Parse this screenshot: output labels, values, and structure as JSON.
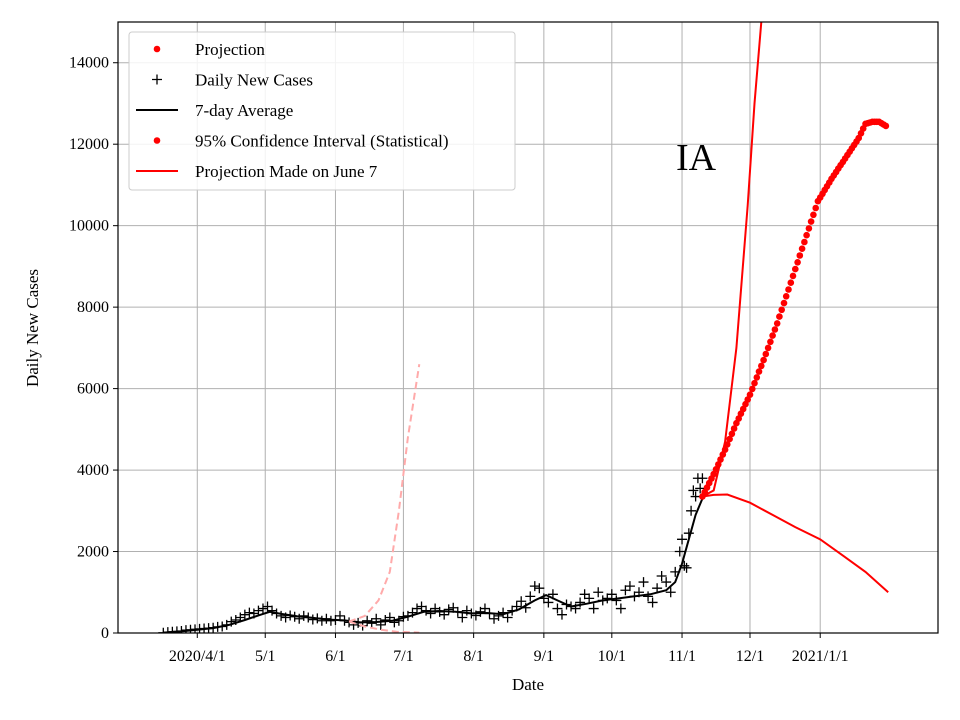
{
  "chart_data": {
    "type": "line",
    "title": "",
    "annotation": "IA",
    "xlabel": "Date",
    "ylabel": "Daily New Cases",
    "xlim": [
      "2020-02-26",
      "2021-02-22"
    ],
    "ylim": [
      0,
      15000
    ],
    "grid": true,
    "legend_position": "top-left",
    "x_ticks": [
      {
        "date": "2020-04-01",
        "label": "2020/4/1"
      },
      {
        "date": "2020-05-01",
        "label": "5/1"
      },
      {
        "date": "2020-06-01",
        "label": "6/1"
      },
      {
        "date": "2020-07-01",
        "label": "7/1"
      },
      {
        "date": "2020-08-01",
        "label": "8/1"
      },
      {
        "date": "2020-09-01",
        "label": "9/1"
      },
      {
        "date": "2020-10-01",
        "label": "10/1"
      },
      {
        "date": "2020-11-01",
        "label": "11/1"
      },
      {
        "date": "2020-12-01",
        "label": "12/1"
      },
      {
        "date": "2021-01-01",
        "label": "2021/1/1"
      }
    ],
    "y_ticks": [
      0,
      2000,
      4000,
      6000,
      8000,
      10000,
      12000,
      14000
    ],
    "colors": {
      "projection": "#ff0000",
      "cases": "#000000",
      "average": "#000000",
      "june_projection": "#ffaaaa"
    },
    "legend": [
      {
        "label": "Projection",
        "marker": "dot",
        "color": "#ff0000"
      },
      {
        "label": "Daily New Cases",
        "marker": "plus",
        "color": "#000000"
      },
      {
        "label": "7-day Average",
        "marker": "line",
        "color": "#000000"
      },
      {
        "label": "95% Confidence Interval (Statistical)",
        "marker": "dot",
        "color": "#ff0000"
      },
      {
        "label": "Projection Made on June 7",
        "marker": "line",
        "color": "#ff0000"
      }
    ],
    "series": [
      {
        "name": "Daily New Cases",
        "kind": "scatter-plus",
        "points": [
          [
            "2020-03-17",
            5
          ],
          [
            "2020-03-19",
            20
          ],
          [
            "2020-03-21",
            30
          ],
          [
            "2020-03-23",
            40
          ],
          [
            "2020-03-25",
            50
          ],
          [
            "2020-03-27",
            70
          ],
          [
            "2020-03-29",
            80
          ],
          [
            "2020-03-31",
            90
          ],
          [
            "2020-04-02",
            100
          ],
          [
            "2020-04-04",
            110
          ],
          [
            "2020-04-06",
            120
          ],
          [
            "2020-04-08",
            130
          ],
          [
            "2020-04-10",
            150
          ],
          [
            "2020-04-12",
            160
          ],
          [
            "2020-04-14",
            200
          ],
          [
            "2020-04-16",
            280
          ],
          [
            "2020-04-18",
            320
          ],
          [
            "2020-04-20",
            380
          ],
          [
            "2020-04-22",
            450
          ],
          [
            "2020-04-24",
            500
          ],
          [
            "2020-04-26",
            480
          ],
          [
            "2020-04-28",
            550
          ],
          [
            "2020-04-30",
            600
          ],
          [
            "2020-05-02",
            650
          ],
          [
            "2020-05-04",
            550
          ],
          [
            "2020-05-06",
            480
          ],
          [
            "2020-05-08",
            420
          ],
          [
            "2020-05-10",
            380
          ],
          [
            "2020-05-12",
            430
          ],
          [
            "2020-05-14",
            400
          ],
          [
            "2020-05-16",
            350
          ],
          [
            "2020-05-18",
            420
          ],
          [
            "2020-05-20",
            380
          ],
          [
            "2020-05-22",
            330
          ],
          [
            "2020-05-24",
            360
          ],
          [
            "2020-05-26",
            300
          ],
          [
            "2020-05-28",
            350
          ],
          [
            "2020-05-30",
            300
          ],
          [
            "2020-06-01",
            320
          ],
          [
            "2020-06-03",
            420
          ],
          [
            "2020-06-05",
            300
          ],
          [
            "2020-06-07",
            260
          ],
          [
            "2020-06-09",
            200
          ],
          [
            "2020-06-11",
            250
          ],
          [
            "2020-06-13",
            180
          ],
          [
            "2020-06-15",
            300
          ],
          [
            "2020-06-17",
            240
          ],
          [
            "2020-06-19",
            350
          ],
          [
            "2020-06-21",
            200
          ],
          [
            "2020-06-23",
            320
          ],
          [
            "2020-06-25",
            380
          ],
          [
            "2020-06-27",
            260
          ],
          [
            "2020-06-29",
            300
          ],
          [
            "2020-07-01",
            400
          ],
          [
            "2020-07-03",
            420
          ],
          [
            "2020-07-05",
            500
          ],
          [
            "2020-07-07",
            600
          ],
          [
            "2020-07-09",
            650
          ],
          [
            "2020-07-11",
            550
          ],
          [
            "2020-07-13",
            480
          ],
          [
            "2020-07-15",
            600
          ],
          [
            "2020-07-17",
            520
          ],
          [
            "2020-07-19",
            450
          ],
          [
            "2020-07-21",
            580
          ],
          [
            "2020-07-23",
            620
          ],
          [
            "2020-07-25",
            520
          ],
          [
            "2020-07-27",
            380
          ],
          [
            "2020-07-29",
            550
          ],
          [
            "2020-07-31",
            480
          ],
          [
            "2020-08-02",
            430
          ],
          [
            "2020-08-04",
            520
          ],
          [
            "2020-08-06",
            600
          ],
          [
            "2020-08-08",
            480
          ],
          [
            "2020-08-10",
            350
          ],
          [
            "2020-08-12",
            420
          ],
          [
            "2020-08-14",
            500
          ],
          [
            "2020-08-16",
            380
          ],
          [
            "2020-08-18",
            550
          ],
          [
            "2020-08-20",
            650
          ],
          [
            "2020-08-22",
            780
          ],
          [
            "2020-08-24",
            620
          ],
          [
            "2020-08-26",
            900
          ],
          [
            "2020-08-28",
            1150
          ],
          [
            "2020-08-30",
            1100
          ],
          [
            "2020-09-01",
            850
          ],
          [
            "2020-09-03",
            750
          ],
          [
            "2020-09-05",
            950
          ],
          [
            "2020-09-07",
            600
          ],
          [
            "2020-09-09",
            450
          ],
          [
            "2020-09-11",
            700
          ],
          [
            "2020-09-13",
            650
          ],
          [
            "2020-09-15",
            600
          ],
          [
            "2020-09-17",
            750
          ],
          [
            "2020-09-19",
            950
          ],
          [
            "2020-09-21",
            850
          ],
          [
            "2020-09-23",
            600
          ],
          [
            "2020-09-25",
            1000
          ],
          [
            "2020-09-27",
            800
          ],
          [
            "2020-09-29",
            850
          ],
          [
            "2020-10-01",
            950
          ],
          [
            "2020-10-03",
            800
          ],
          [
            "2020-10-05",
            600
          ],
          [
            "2020-10-07",
            1050
          ],
          [
            "2020-10-09",
            1150
          ],
          [
            "2020-10-11",
            900
          ],
          [
            "2020-10-13",
            1000
          ],
          [
            "2020-10-15",
            1250
          ],
          [
            "2020-10-17",
            900
          ],
          [
            "2020-10-19",
            750
          ],
          [
            "2020-10-21",
            1100
          ],
          [
            "2020-10-23",
            1400
          ],
          [
            "2020-10-25",
            1250
          ],
          [
            "2020-10-27",
            1000
          ],
          [
            "2020-10-29",
            1500
          ],
          [
            "2020-10-31",
            2000
          ],
          [
            "2020-11-01",
            2300
          ],
          [
            "2020-11-02",
            1650
          ],
          [
            "2020-11-03",
            1600
          ],
          [
            "2020-11-04",
            2450
          ],
          [
            "2020-11-05",
            3000
          ],
          [
            "2020-11-06",
            3500
          ],
          [
            "2020-11-07",
            3350
          ],
          [
            "2020-11-08",
            3800
          ],
          [
            "2020-11-09",
            3550
          ],
          [
            "2020-11-10",
            3800
          ]
        ]
      },
      {
        "name": "7-day Average",
        "kind": "line",
        "points": [
          [
            "2020-03-17",
            10
          ],
          [
            "2020-03-25",
            40
          ],
          [
            "2020-04-01",
            80
          ],
          [
            "2020-04-08",
            120
          ],
          [
            "2020-04-15",
            200
          ],
          [
            "2020-04-22",
            320
          ],
          [
            "2020-04-29",
            450
          ],
          [
            "2020-05-03",
            520
          ],
          [
            "2020-05-08",
            470
          ],
          [
            "2020-05-15",
            410
          ],
          [
            "2020-05-22",
            370
          ],
          [
            "2020-05-29",
            330
          ],
          [
            "2020-06-05",
            310
          ],
          [
            "2020-06-12",
            260
          ],
          [
            "2020-06-19",
            270
          ],
          [
            "2020-06-26",
            300
          ],
          [
            "2020-07-03",
            400
          ],
          [
            "2020-07-10",
            520
          ],
          [
            "2020-07-17",
            540
          ],
          [
            "2020-07-24",
            520
          ],
          [
            "2020-07-31",
            480
          ],
          [
            "2020-08-07",
            490
          ],
          [
            "2020-08-14",
            460
          ],
          [
            "2020-08-21",
            580
          ],
          [
            "2020-08-28",
            800
          ],
          [
            "2020-09-02",
            930
          ],
          [
            "2020-09-07",
            800
          ],
          [
            "2020-09-13",
            650
          ],
          [
            "2020-09-20",
            720
          ],
          [
            "2020-09-27",
            800
          ],
          [
            "2020-10-04",
            850
          ],
          [
            "2020-10-11",
            900
          ],
          [
            "2020-10-18",
            950
          ],
          [
            "2020-10-25",
            1050
          ],
          [
            "2020-10-29",
            1250
          ],
          [
            "2020-11-01",
            1700
          ],
          [
            "2020-11-04",
            2300
          ],
          [
            "2020-11-07",
            2900
          ],
          [
            "2020-11-10",
            3300
          ]
        ]
      },
      {
        "name": "Projection",
        "kind": "scatter-dot",
        "points": [
          [
            "2020-11-10",
            3350
          ],
          [
            "2020-11-15",
            3900
          ],
          [
            "2020-11-20",
            4500
          ],
          [
            "2020-11-25",
            5150
          ],
          [
            "2020-12-01",
            5850
          ],
          [
            "2020-12-07",
            6700
          ],
          [
            "2020-12-13",
            7600
          ],
          [
            "2020-12-19",
            8600
          ],
          [
            "2020-12-25",
            9600
          ],
          [
            "2020-12-31",
            10600
          ],
          [
            "2021-01-06",
            11150
          ],
          [
            "2021-01-12",
            11650
          ],
          [
            "2021-01-18",
            12150
          ],
          [
            "2021-01-21",
            12500
          ],
          [
            "2021-01-24",
            12550
          ],
          [
            "2021-01-27",
            12550
          ],
          [
            "2021-01-30",
            12450
          ]
        ]
      },
      {
        "name": "95% Confidence Interval (Statistical)",
        "kind": "line",
        "points": [
          [
            "2020-11-10",
            3350
          ],
          [
            "2020-11-15",
            3500
          ],
          [
            "2020-11-20",
            4700
          ],
          [
            "2020-11-25",
            7000
          ],
          [
            "2020-11-30",
            10500
          ],
          [
            "2020-12-03",
            13000
          ],
          [
            "2020-12-06",
            15000
          ],
          [
            "BREAK",
            0
          ],
          [
            "2020-11-10",
            3350
          ],
          [
            "2020-11-15",
            3390
          ],
          [
            "2020-11-21",
            3400
          ],
          [
            "2020-12-01",
            3200
          ],
          [
            "2020-12-11",
            2900
          ],
          [
            "2020-12-21",
            2600
          ],
          [
            "2021-01-01",
            2300
          ],
          [
            "2021-01-11",
            1900
          ],
          [
            "2021-01-21",
            1500
          ],
          [
            "2021-01-31",
            1000
          ]
        ]
      },
      {
        "name": "Projection Made on June 7",
        "kind": "dashed",
        "points": [
          [
            "2020-06-07",
            280
          ],
          [
            "2020-06-14",
            420
          ],
          [
            "2020-06-20",
            800
          ],
          [
            "2020-06-25",
            1500
          ],
          [
            "2020-06-29",
            3000
          ],
          [
            "2020-07-03",
            4800
          ],
          [
            "2020-07-08",
            6600
          ],
          [
            "BREAK",
            0
          ],
          [
            "2020-06-07",
            280
          ],
          [
            "2020-06-14",
            160
          ],
          [
            "2020-06-21",
            80
          ],
          [
            "2020-06-28",
            30
          ],
          [
            "2020-07-08",
            10
          ]
        ]
      }
    ]
  }
}
